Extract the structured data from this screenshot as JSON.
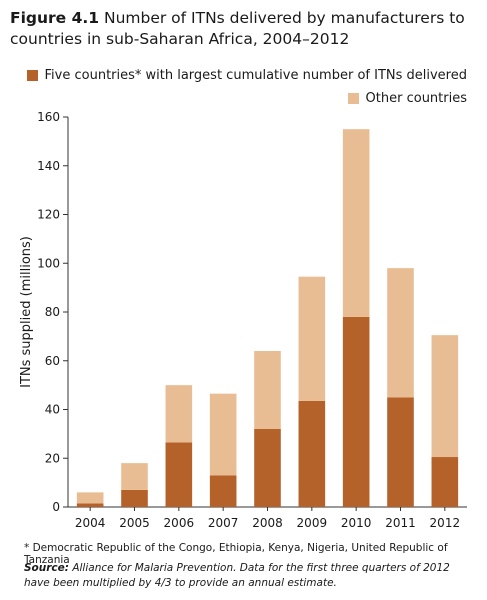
{
  "title": {
    "label": "Figure 4.1",
    "text": "Number of ITNs delivered by manufacturers to countries in sub-Saharan Africa, 2004–2012"
  },
  "footnote": "* Democratic Republic of the Congo, Ethiopia, Kenya, Nigeria, United Republic of Tanzania",
  "source": {
    "label": "Source:",
    "text": "Alliance for Malaria Prevention. Data for the first three quarters of 2012 have been multiplied by 4/3 to provide an annual estimate."
  },
  "chart_data": {
    "type": "bar",
    "stacked": true,
    "categories": [
      "2004",
      "2005",
      "2006",
      "2007",
      "2008",
      "2009",
      "2010",
      "2011",
      "2012"
    ],
    "series": [
      {
        "name": "Five countries* with largest cumulative number of ITNs delivered",
        "color": "#b5612a",
        "values": [
          1.5,
          7,
          26.5,
          13,
          32,
          43.5,
          78,
          45,
          20.5
        ]
      },
      {
        "name": "Other countries",
        "color": "#e9bd94",
        "values": [
          4.5,
          11,
          23.5,
          33.5,
          32,
          51,
          77,
          53,
          50
        ]
      }
    ],
    "ylabel": "ITNs supplied (millions)",
    "xlabel": "",
    "ylim": [
      0,
      160
    ],
    "yticks": [
      0,
      20,
      40,
      60,
      80,
      100,
      120,
      140,
      160
    ],
    "grid": false,
    "legend_position": "top-right"
  }
}
